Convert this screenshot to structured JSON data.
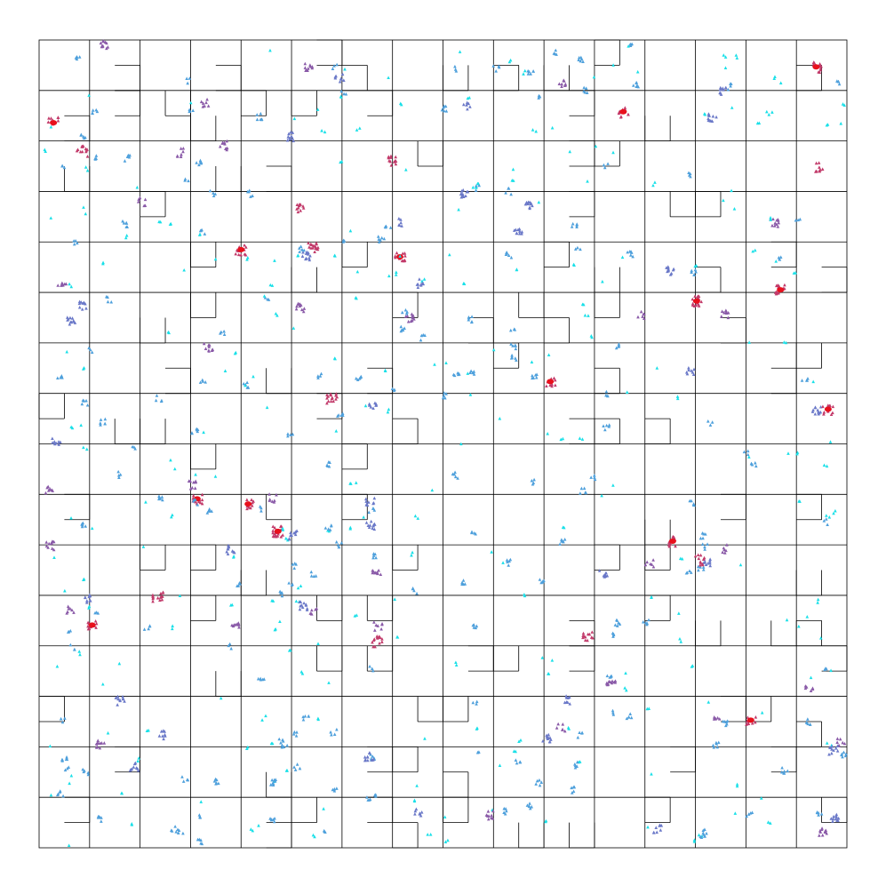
{
  "figure": {
    "description_visible_text": "",
    "grid_columns": 16,
    "grid_rows": 16,
    "colors": {
      "background": "#ffffff",
      "grid_line": "#000000",
      "density_low": "#19e0e8",
      "density_mid_low": "#4ea0dc",
      "density_mid": "#6a78c8",
      "density_mid_high": "#8a5aa8",
      "density_high": "#c23a6a",
      "density_peak": "#e8101c"
    },
    "marker_shape": "small triangle / dot clusters"
  }
}
